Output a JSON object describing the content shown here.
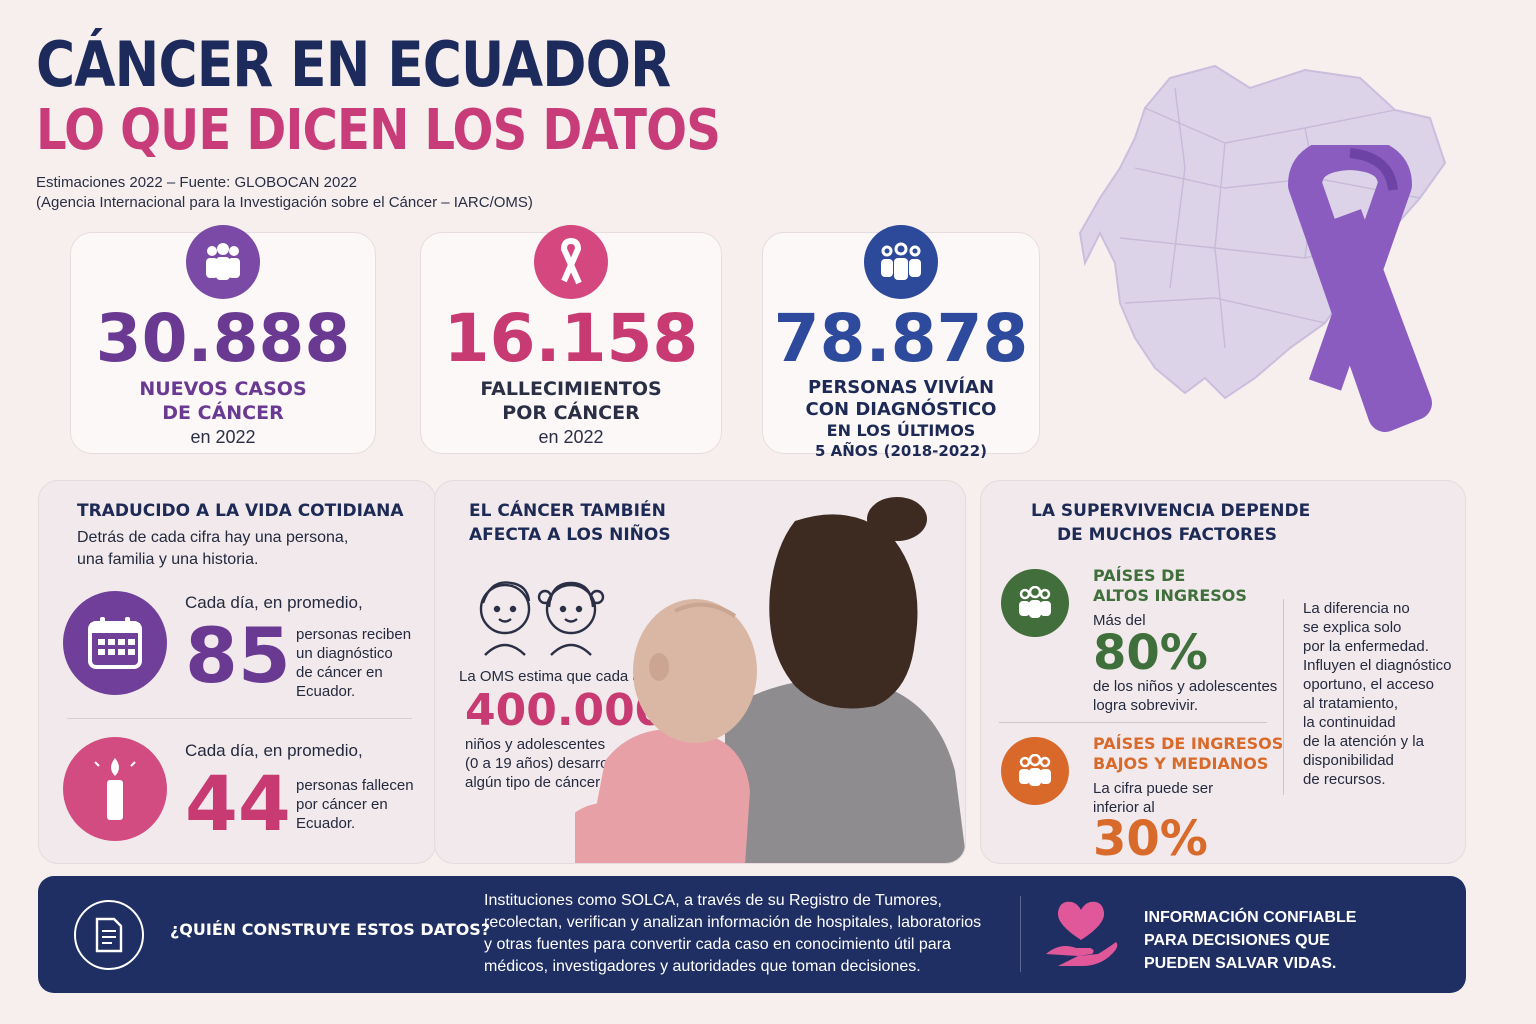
{
  "header": {
    "title": "CÁNCER EN ECUADOR",
    "subtitle": "LO QUE DICEN LOS DATOS",
    "source_line1": "Estimaciones 2022 – Fuente: GLOBOCAN 2022",
    "source_line2": "(Agencia Internacional para la Investigación sobre el Cáncer – IARC/OMS)"
  },
  "stats": [
    {
      "number": "30.888",
      "label1": "NUEVOS CASOS",
      "label2": "DE CÁNCER",
      "label3": "en 2022",
      "label4": "",
      "color": "#6a3a93",
      "icon": "people-group-icon"
    },
    {
      "number": "16.158",
      "label1": "FALLECIMIENTOS",
      "label2": "POR CÁNCER",
      "label3": "en 2022",
      "label4": "",
      "color": "#c73a72",
      "icon": "awareness-ribbon-icon"
    },
    {
      "number": "78.878",
      "label1": "PERSONAS VIVÍAN",
      "label2": "CON DIAGNÓSTICO",
      "label3": "EN LOS ÚLTIMOS",
      "label4": "5 AÑOS (2018-2022)",
      "color": "#2e4a9c",
      "icon": "community-icon"
    }
  ],
  "daily": {
    "title": "TRADUCIDO A LA VIDA COTIDIANA",
    "intro1": "Detrás de cada cifra hay una persona,",
    "intro2": "una familia y una historia.",
    "items": [
      {
        "lead": "Cada día, en promedio,",
        "number": "85",
        "text1": "personas reciben",
        "text2": "un diagnóstico",
        "text3": "de cáncer en",
        "text4": "Ecuador.",
        "color": "#6a3a93",
        "icon": "calendar-icon"
      },
      {
        "lead": "Cada día, en promedio,",
        "number": "44",
        "text1": "personas fallecen",
        "text2": "por cáncer en",
        "text3": "Ecuador.",
        "text4": "",
        "color": "#c73a72",
        "icon": "candle-icon"
      }
    ]
  },
  "children": {
    "title1": "EL CÁNCER TAMBIÉN",
    "title2": "AFECTA A LOS NIÑOS",
    "text_lead": "La OMS estima que cada año",
    "number": "400.000",
    "text1": "niños y adolescentes",
    "text2": "(0 a 19 años) desarrollan",
    "text3": "algún tipo de cáncer.",
    "icon": "children-faces-icon"
  },
  "survival": {
    "title1": "LA SUPERVIVENCIA DEPENDE",
    "title2": "DE MUCHOS FACTORES",
    "high": {
      "title1": "PAÍSES DE",
      "title2": "ALTOS INGRESOS",
      "lead": "Más del",
      "number": "80%",
      "text1": "de los niños y adolescentes",
      "text2": "logra sobrevivir.",
      "color": "#3f6f3a"
    },
    "low": {
      "title1": "PAÍSES DE INGRESOS",
      "title2": "BAJOS Y MEDIANOS",
      "lead1": "La cifra puede ser",
      "lead2": "inferior al",
      "number": "30%",
      "color": "#d86a2b"
    },
    "note": [
      "La diferencia no",
      "se explica solo",
      "por la enfermedad.",
      "Influyen el diagnóstico",
      "oportuno, el acceso",
      "al tratamiento,",
      "la continuidad",
      "de la atención y la",
      "disponibilidad",
      "de recursos."
    ]
  },
  "footer": {
    "question": "¿QUIÉN CONSTRUYE ESTOS DATOS?",
    "body": [
      "Instituciones como SOLCA, a través de su Registro de Tumores,",
      "recolectan, verifican y analizan información de hospitales, laboratorios",
      "y otras fuentes para convertir cada caso en conocimiento útil para",
      "médicos, investigadores y autoridades que toman decisiones."
    ],
    "message": [
      "INFORMACIÓN CONFIABLE",
      "PARA DECISIONES QUE",
      "PUEDEN SALVAR VIDAS."
    ]
  },
  "colors": {
    "navy": "#1c2a5c",
    "pink": "#c83d79",
    "purple": "#6a3a93",
    "blue": "#2e4a9c",
    "green": "#3f6f3a",
    "orange": "#d86a2b",
    "ribbon": "#8a5cc0"
  }
}
